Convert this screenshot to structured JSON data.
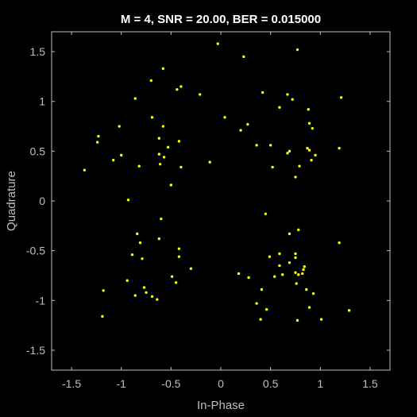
{
  "chart_data": {
    "type": "scatter",
    "title": "M = 4, SNR = 20.00, BER = 0.015000",
    "xlabel": "In-Phase",
    "ylabel": "Quadrature",
    "xlim": [
      -1.7,
      1.7
    ],
    "ylim": [
      -1.7,
      1.7
    ],
    "xticks": [
      -1.5,
      -1,
      -0.5,
      0,
      0.5,
      1,
      1.5
    ],
    "yticks": [
      -1.5,
      -1,
      -0.5,
      0,
      0.5,
      1,
      1.5
    ],
    "xtick_labels": [
      "-1.5",
      "-1",
      "-0.5",
      "0",
      "0.5",
      "1",
      "1.5"
    ],
    "ytick_labels": [
      "-1.5",
      "-1",
      "-0.5",
      "0",
      "0.5",
      "1",
      "1.5"
    ],
    "grid": false,
    "colors": {
      "background": "#000000",
      "axes": "#bfbfbf",
      "marker": "#ffff00",
      "title": "#ffffff"
    },
    "points": [
      [
        -0.03,
        1.58
      ],
      [
        0.23,
        1.45
      ],
      [
        0.77,
        1.52
      ],
      [
        -0.58,
        1.33
      ],
      [
        -0.7,
        1.21
      ],
      [
        -0.4,
        1.15
      ],
      [
        -0.44,
        1.12
      ],
      [
        -0.21,
        1.07
      ],
      [
        0.42,
        1.09
      ],
      [
        0.67,
        1.07
      ],
      [
        0.72,
        1.02
      ],
      [
        1.21,
        1.04
      ],
      [
        0.88,
        0.92
      ],
      [
        0.59,
        0.94
      ],
      [
        -0.86,
        1.03
      ],
      [
        0.04,
        0.84
      ],
      [
        -0.69,
        0.84
      ],
      [
        -1.02,
        0.75
      ],
      [
        -0.58,
        0.75
      ],
      [
        0.27,
        0.77
      ],
      [
        0.89,
        0.78
      ],
      [
        0.2,
        0.71
      ],
      [
        0.92,
        0.73
      ],
      [
        -1.23,
        0.65
      ],
      [
        -1.24,
        0.59
      ],
      [
        -0.62,
        0.63
      ],
      [
        -0.42,
        0.6
      ],
      [
        0.36,
        0.56
      ],
      [
        0.5,
        0.56
      ],
      [
        -0.53,
        0.54
      ],
      [
        -0.62,
        0.47
      ],
      [
        0.67,
        0.48
      ],
      [
        0.87,
        0.53
      ],
      [
        0.89,
        0.51
      ],
      [
        0.69,
        0.5
      ],
      [
        0.95,
        0.46
      ],
      [
        1.19,
        0.53
      ],
      [
        -0.57,
        0.44
      ],
      [
        -1.0,
        0.46
      ],
      [
        -1.08,
        0.41
      ],
      [
        0.91,
        0.41
      ],
      [
        -0.11,
        0.39
      ],
      [
        -0.61,
        0.37
      ],
      [
        -0.82,
        0.35
      ],
      [
        -0.4,
        0.34
      ],
      [
        0.52,
        0.34
      ],
      [
        0.79,
        0.35
      ],
      [
        -1.37,
        0.31
      ],
      [
        0.75,
        0.24
      ],
      [
        -0.5,
        0.16
      ],
      [
        -0.93,
        0.01
      ],
      [
        0.45,
        -0.13
      ],
      [
        -0.6,
        -0.18
      ],
      [
        0.78,
        -0.29
      ],
      [
        -0.84,
        -0.33
      ],
      [
        0.69,
        -0.33
      ],
      [
        -0.62,
        -0.38
      ],
      [
        -0.81,
        -0.42
      ],
      [
        1.19,
        -0.42
      ],
      [
        -0.42,
        -0.48
      ],
      [
        -0.89,
        -0.54
      ],
      [
        0.59,
        -0.53
      ],
      [
        0.75,
        -0.53
      ],
      [
        0.49,
        -0.56
      ],
      [
        -0.42,
        -0.56
      ],
      [
        0.75,
        -0.57
      ],
      [
        -0.79,
        -0.58
      ],
      [
        0.69,
        -0.62
      ],
      [
        0.59,
        -0.65
      ],
      [
        0.84,
        -0.66
      ],
      [
        0.83,
        -0.69
      ],
      [
        -0.3,
        -0.68
      ],
      [
        0.75,
        -0.72
      ],
      [
        0.78,
        -0.74
      ],
      [
        0.18,
        -0.73
      ],
      [
        0.82,
        -0.73
      ],
      [
        0.62,
        -0.74
      ],
      [
        0.28,
        -0.77
      ],
      [
        0.54,
        -0.76
      ],
      [
        -0.49,
        -0.76
      ],
      [
        -0.45,
        -0.82
      ],
      [
        -0.94,
        -0.8
      ],
      [
        0.76,
        -0.83
      ],
      [
        -0.77,
        -0.87
      ],
      [
        0.86,
        -0.89
      ],
      [
        -1.18,
        -0.9
      ],
      [
        -0.75,
        -0.92
      ],
      [
        0.41,
        -0.89
      ],
      [
        0.93,
        -0.93
      ],
      [
        -0.86,
        -0.95
      ],
      [
        -0.69,
        -0.96
      ],
      [
        -0.64,
        -0.99
      ],
      [
        0.36,
        -1.03
      ],
      [
        0.89,
        -1.07
      ],
      [
        0.46,
        -1.09
      ],
      [
        1.29,
        -1.1
      ],
      [
        -1.19,
        -1.16
      ],
      [
        0.4,
        -1.19
      ],
      [
        0.77,
        -1.2
      ],
      [
        1.01,
        -1.19
      ]
    ]
  }
}
